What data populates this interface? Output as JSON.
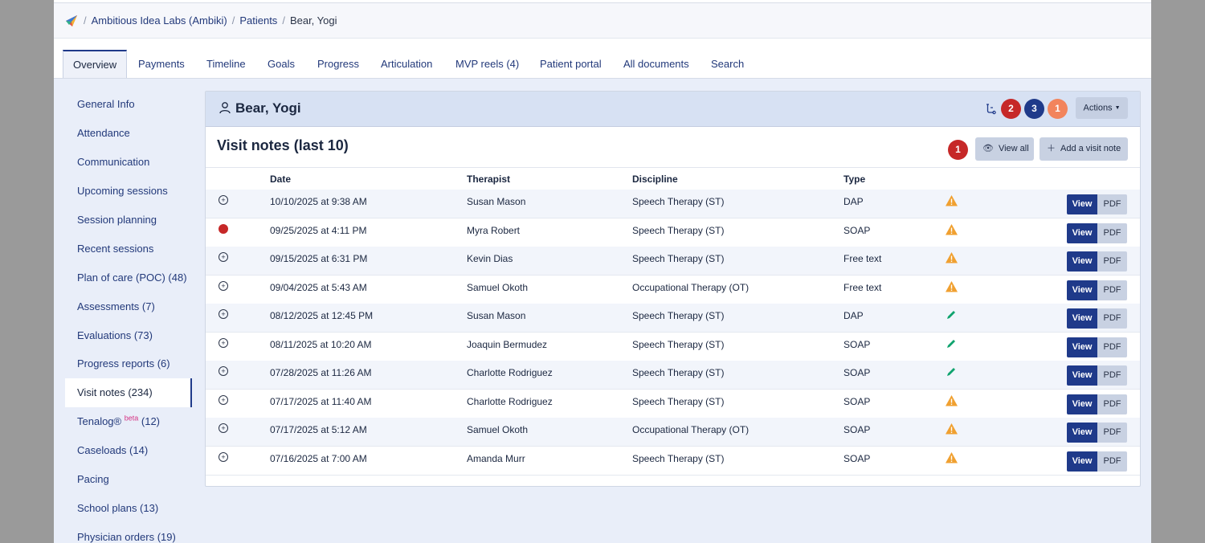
{
  "breadcrumb": {
    "org": "Ambitious Idea Labs (Ambiki)",
    "sep": "/",
    "patients": "Patients",
    "current": "Bear, Yogi"
  },
  "tabs": [
    {
      "label": "Overview",
      "active": true
    },
    {
      "label": "Payments"
    },
    {
      "label": "Timeline"
    },
    {
      "label": "Goals"
    },
    {
      "label": "Progress"
    },
    {
      "label": "Articulation"
    },
    {
      "label": "MVP reels (4)"
    },
    {
      "label": "Patient portal"
    },
    {
      "label": "All documents"
    },
    {
      "label": "Search"
    }
  ],
  "sidebar": {
    "items": [
      {
        "label": "General Info"
      },
      {
        "label": "Attendance"
      },
      {
        "label": "Communication"
      },
      {
        "label": "Upcoming sessions"
      },
      {
        "label": "Session planning"
      },
      {
        "label": "Recent sessions"
      },
      {
        "label": "Plan of care (POC) (48)"
      },
      {
        "label": "Assessments (7)"
      },
      {
        "label": "Evaluations (73)"
      },
      {
        "label": "Progress reports (6)"
      },
      {
        "label": "Visit notes (234)",
        "active": true
      },
      {
        "label": "Tenalog®",
        "sup": "beta",
        "suffix": " (12)"
      },
      {
        "label": "Caseloads (14)"
      },
      {
        "label": "Pacing"
      },
      {
        "label": "School plans (13)"
      },
      {
        "label": "Physician orders (19)"
      }
    ]
  },
  "patient": {
    "name": "Bear, Yogi",
    "badges": [
      {
        "value": "2",
        "color": "#c62828"
      },
      {
        "value": "3",
        "color": "#1f3a8a"
      },
      {
        "value": "1",
        "color": "#f2845c"
      }
    ],
    "actions_label": "Actions"
  },
  "visit_notes": {
    "title": "Visit notes (last 10)",
    "alert_count": "1",
    "view_all_label": "View all",
    "add_label": "Add a visit note",
    "columns": {
      "date": "Date",
      "therapist": "Therapist",
      "discipline": "Discipline",
      "type": "Type"
    },
    "view_label": "View",
    "pdf_label": "PDF",
    "rows": [
      {
        "date": "10/10/2025 at 9:38 AM",
        "therapist": "Susan Mason",
        "discipline": "Speech Therapy (ST)",
        "type": "DAP",
        "status": "warning",
        "marker": "expand"
      },
      {
        "date": "09/25/2025 at 4:11 PM",
        "therapist": "Myra Robert",
        "discipline": "Speech Therapy (ST)",
        "type": "SOAP",
        "status": "warning",
        "marker": "red-dot"
      },
      {
        "date": "09/15/2025 at 6:31 PM",
        "therapist": "Kevin Dias",
        "discipline": "Speech Therapy (ST)",
        "type": "Free text",
        "status": "warning",
        "marker": "expand"
      },
      {
        "date": "09/04/2025 at 5:43 AM",
        "therapist": "Samuel Okoth",
        "discipline": "Occupational Therapy (OT)",
        "type": "Free text",
        "status": "warning",
        "marker": "expand"
      },
      {
        "date": "08/12/2025 at 12:45 PM",
        "therapist": "Susan Mason",
        "discipline": "Speech Therapy (ST)",
        "type": "DAP",
        "status": "signed",
        "marker": "expand"
      },
      {
        "date": "08/11/2025 at 10:20 AM",
        "therapist": "Joaquin Bermudez",
        "discipline": "Speech Therapy (ST)",
        "type": "SOAP",
        "status": "signed",
        "marker": "expand"
      },
      {
        "date": "07/28/2025 at 11:26 AM",
        "therapist": "Charlotte Rodriguez",
        "discipline": "Speech Therapy (ST)",
        "type": "SOAP",
        "status": "signed",
        "marker": "expand"
      },
      {
        "date": "07/17/2025 at 11:40 AM",
        "therapist": "Charlotte Rodriguez",
        "discipline": "Speech Therapy (ST)",
        "type": "SOAP",
        "status": "warning",
        "marker": "expand"
      },
      {
        "date": "07/17/2025 at 5:12 AM",
        "therapist": "Samuel Okoth",
        "discipline": "Occupational Therapy (OT)",
        "type": "SOAP",
        "status": "warning",
        "marker": "expand"
      },
      {
        "date": "07/16/2025 at 7:00 AM",
        "therapist": "Amanda Murr",
        "discipline": "Speech Therapy (ST)",
        "type": "SOAP",
        "status": "warning",
        "marker": "expand"
      }
    ]
  },
  "icons": {
    "logo": "ambiki-logo-icon",
    "patient": "user-icon",
    "workflow": "workflow-icon",
    "view_all": "eye-icon",
    "add": "plus-icon",
    "warning": "warning-triangle-icon",
    "signed": "pencil-icon",
    "expand": "expand-circle-icon"
  },
  "colors": {
    "primary": "#1f3a8a",
    "danger": "#c62828",
    "orange": "#f2845c",
    "warning": "#f0a030",
    "success": "#10a36e"
  }
}
